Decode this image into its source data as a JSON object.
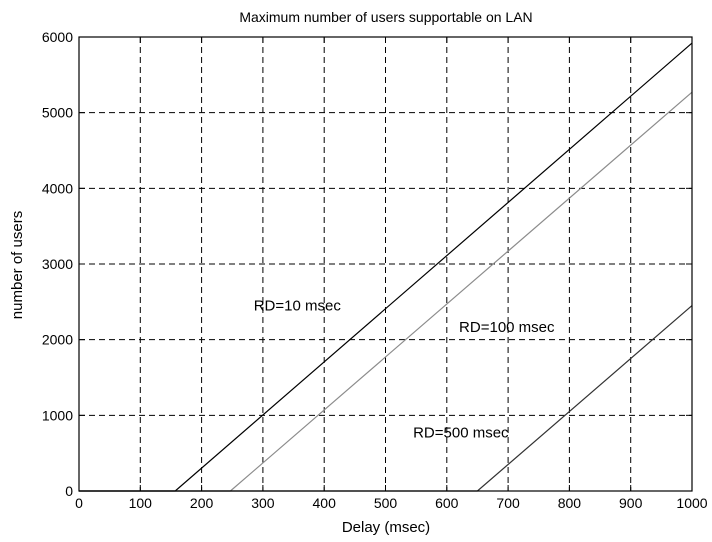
{
  "chart_data": {
    "type": "line",
    "title": "Maximum number of users supportable on LAN",
    "xlabel": "Delay (msec)",
    "ylabel": "number of users",
    "xlim": [
      0,
      1000
    ],
    "ylim": [
      0,
      6000
    ],
    "xticks": [
      0,
      100,
      200,
      300,
      400,
      500,
      600,
      700,
      800,
      900,
      1000
    ],
    "yticks": [
      0,
      1000,
      2000,
      3000,
      4000,
      5000,
      6000
    ],
    "grid": true,
    "series": [
      {
        "name": "RD=10 msec",
        "color": "#000000",
        "x": [
          0,
          157,
          1000
        ],
        "y": [
          0,
          0,
          5920
        ]
      },
      {
        "name": "RD=100 msec",
        "color": "#8c8c8c",
        "x": [
          0,
          247,
          1000
        ],
        "y": [
          0,
          0,
          5270
        ]
      },
      {
        "name": "RD=500 msec",
        "color": "#333333",
        "x": [
          0,
          650,
          1000
        ],
        "y": [
          0,
          0,
          2450
        ]
      }
    ],
    "annotations": [
      {
        "text": "RD=10 msec",
        "x": 285,
        "y": 2450
      },
      {
        "text": "RD=100 msec",
        "x": 620,
        "y": 2170
      },
      {
        "text": "RD=500 msec",
        "x": 545,
        "y": 770
      }
    ]
  }
}
